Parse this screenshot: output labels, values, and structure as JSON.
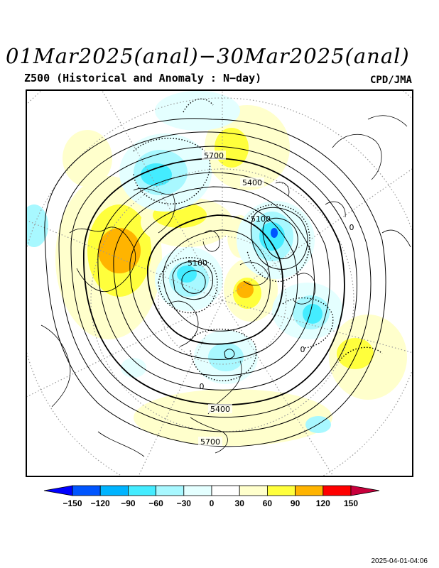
{
  "title": "01Mar2025(anal)−30Mar2025(anal)",
  "subtitle": "Z500 (Historical and Anomaly : N−day)",
  "credit": "CPD/JMA",
  "timestamp": "2025-04-01-04:06",
  "map": {
    "projection": "north-polar-stereographic",
    "contour_labels": [
      "5700",
      "5400",
      "5100",
      "5100",
      "5400",
      "5700",
      "0",
      "0",
      "0"
    ],
    "anomaly_color_scale": {
      "ticks": [
        "−150",
        "−120",
        "−90",
        "−60",
        "−30",
        "0",
        "30",
        "60",
        "90",
        "120",
        "150"
      ],
      "colors": [
        "#0000ff",
        "#0055ff",
        "#00b4ff",
        "#44ecff",
        "#a8f8ff",
        "#e4ffff",
        "#ffffff",
        "#ffffcc",
        "#ffff3c",
        "#ffb400",
        "#ff0000",
        "#c8003c"
      ]
    }
  }
}
